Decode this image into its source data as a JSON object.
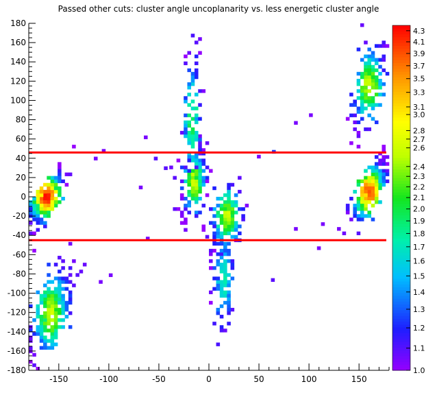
{
  "chart_data": {
    "type": "heatmap",
    "title": "Passed other cuts: cluster angle uncoplanarity vs. less energetic cluster angle",
    "xlabel": "",
    "ylabel": "",
    "xlim": [
      -180,
      180
    ],
    "ylim": [
      -180,
      180
    ],
    "x_ticks": [
      -150,
      -100,
      -50,
      0,
      50,
      100,
      150
    ],
    "y_ticks": [
      180,
      160,
      140,
      120,
      100,
      80,
      60,
      40,
      20,
      0,
      -20,
      -40,
      -60,
      -80,
      -100,
      -120,
      -140,
      -160,
      -180
    ],
    "colorbar": {
      "min": 1.0,
      "max": 4.4,
      "tick_labels": [
        "4.3",
        "4.1",
        "3.9",
        "3.7",
        "3.5",
        "3.3",
        "3.1",
        "3.0",
        "2.8",
        "2.7",
        "2.6",
        "2.4",
        "2.3",
        "2.2",
        "2.1",
        "2.0",
        "1.9",
        "1.8",
        "1.7",
        "1.6",
        "1.5",
        "1.4",
        "1.3",
        "1.2",
        "1.1",
        "1.0"
      ],
      "tick_values": [
        4.3,
        4.1,
        3.9,
        3.7,
        3.5,
        3.3,
        3.1,
        3.0,
        2.8,
        2.7,
        2.6,
        2.4,
        2.3,
        2.2,
        2.1,
        2.0,
        1.9,
        1.8,
        1.7,
        1.6,
        1.5,
        1.4,
        1.3,
        1.2,
        1.1,
        1.0
      ]
    },
    "cut_lines_y": [
      46,
      -45
    ],
    "clusters": [
      {
        "x": -162,
        "y": 0,
        "sx": 9,
        "sy": 14,
        "rho": 0.75,
        "peak": 4.3,
        "n": 230
      },
      {
        "x": -158,
        "y": -120,
        "sx": 10,
        "sy": 25,
        "rho": 0.6,
        "peak": 3.1,
        "n": 260
      },
      {
        "x": -15,
        "y": 15,
        "sx": 6,
        "sy": 18,
        "rho": 0.3,
        "peak": 3.2,
        "n": 140
      },
      {
        "x": -17,
        "y": 80,
        "sx": 5,
        "sy": 35,
        "rho": 0.1,
        "peak": 2.5,
        "n": 110
      },
      {
        "x": 18,
        "y": -20,
        "sx": 8,
        "sy": 18,
        "rho": 0.3,
        "peak": 3.1,
        "n": 160
      },
      {
        "x": 15,
        "y": -85,
        "sx": 6,
        "sy": 30,
        "rho": 0.0,
        "peak": 2.2,
        "n": 100
      },
      {
        "x": 160,
        "y": 5,
        "sx": 9,
        "sy": 16,
        "rho": 0.75,
        "peak": 4.1,
        "n": 230
      },
      {
        "x": 160,
        "y": 115,
        "sx": 9,
        "sy": 22,
        "rho": 0.5,
        "peak": 3.1,
        "n": 190
      }
    ],
    "isolated_points": [
      {
        "x": -65,
        "y": 60,
        "v": 1.1
      },
      {
        "x": -63,
        "y": -45,
        "v": 1.1
      },
      {
        "x": -55,
        "y": 38,
        "v": 1.2
      },
      {
        "x": -45,
        "y": 28,
        "v": 1.2
      },
      {
        "x": -110,
        "y": -90,
        "v": 1.1
      },
      {
        "x": -100,
        "y": -83,
        "v": 1.1
      },
      {
        "x": -115,
        "y": 38,
        "v": 1.1
      },
      {
        "x": -107,
        "y": 46,
        "v": 1.1
      },
      {
        "x": 48,
        "y": 40,
        "v": 1.1
      },
      {
        "x": 62,
        "y": -88,
        "v": 1.2
      },
      {
        "x": 85,
        "y": 75,
        "v": 1.1
      },
      {
        "x": 100,
        "y": 83,
        "v": 1.1
      },
      {
        "x": 85,
        "y": -35,
        "v": 1.1
      },
      {
        "x": 108,
        "y": -55,
        "v": 1.1
      },
      {
        "x": 112,
        "y": -30,
        "v": 1.1
      },
      {
        "x": 128,
        "y": -35,
        "v": 1.1
      },
      {
        "x": 63,
        "y": 45,
        "v": 1.5
      },
      {
        "x": -70,
        "y": 8,
        "v": 1.1
      }
    ]
  }
}
